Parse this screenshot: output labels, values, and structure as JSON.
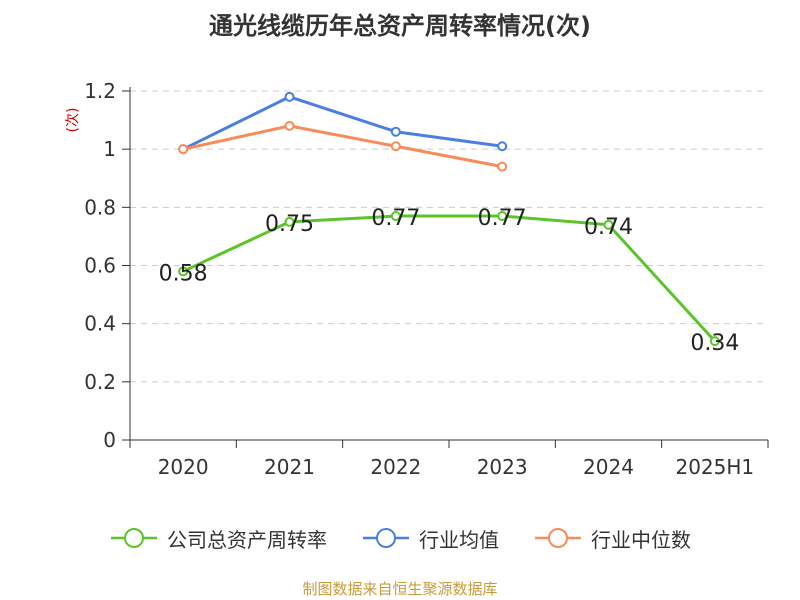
{
  "title": "通光线缆历年总资产周转率情况(次)",
  "y_unit": "(次)",
  "source": "制图数据来自恒生聚源数据库",
  "chart_data": {
    "type": "line",
    "title": "通光线缆历年总资产周转率情况(次)",
    "ylabel": "(次)",
    "categories": [
      "2020",
      "2021",
      "2022",
      "2023",
      "2024",
      "2025H1"
    ],
    "ylim": [
      0,
      1.2
    ],
    "yticks": [
      0,
      0.2,
      0.4,
      0.6,
      0.8,
      1,
      1.2
    ],
    "ytick_labels": [
      "0",
      "0.2",
      "0.4",
      "0.6",
      "0.8",
      "1",
      "1.2"
    ],
    "grid": true,
    "legend_position": "bottom",
    "series": [
      {
        "name": "公司总资产周转率",
        "color": "#5cc428",
        "values": [
          0.58,
          0.75,
          0.77,
          0.77,
          0.74,
          0.34
        ],
        "show_labels": true,
        "labels": [
          "0.58",
          "0.75",
          "0.77",
          "0.77",
          "0.74",
          "0.34"
        ]
      },
      {
        "name": "行业均值",
        "color": "#4a7fe0",
        "values": [
          1.0,
          1.18,
          1.06,
          1.01,
          null,
          null
        ],
        "show_labels": false
      },
      {
        "name": "行业中位数",
        "color": "#f78c5a",
        "values": [
          1.0,
          1.08,
          1.01,
          0.94,
          null,
          null
        ],
        "show_labels": false
      }
    ]
  }
}
